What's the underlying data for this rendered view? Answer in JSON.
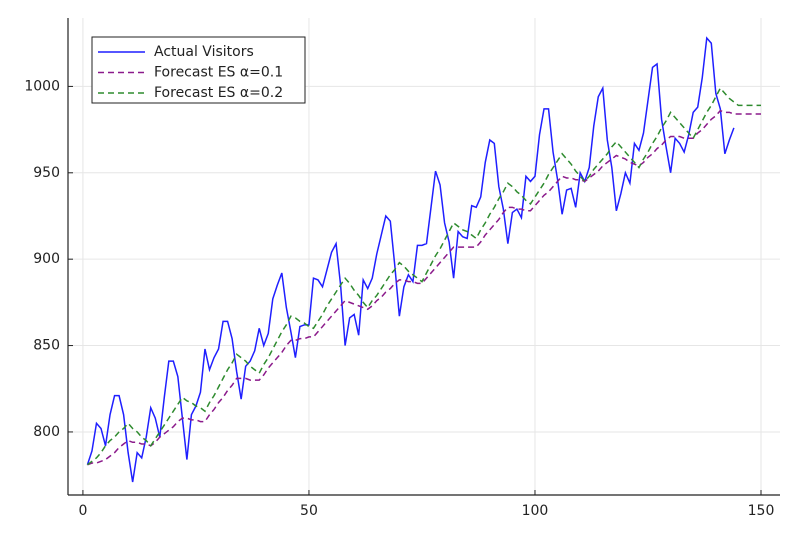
{
  "chart_data": {
    "type": "line",
    "xlim": [
      -3.3,
      154.2
    ],
    "ylim": [
      763.5,
      1039.6
    ],
    "xticks": [
      0,
      50,
      100,
      150
    ],
    "yticks": [
      800,
      850,
      900,
      950,
      1000
    ],
    "grid": true,
    "legend": "top-left",
    "series": [
      {
        "name": "Actual Visitors",
        "color": "#1f1fff",
        "dash": "solid",
        "x": [
          1,
          2,
          3,
          4,
          5,
          6,
          7,
          8,
          9,
          10,
          11,
          12,
          13,
          14,
          15,
          16,
          17,
          18,
          19,
          20,
          21,
          22,
          23,
          24,
          25,
          26,
          27,
          28,
          29,
          30,
          31,
          32,
          33,
          34,
          35,
          36,
          37,
          38,
          39,
          40,
          41,
          42,
          43,
          44,
          45,
          46,
          47,
          48,
          49,
          50,
          51,
          52,
          53,
          54,
          55,
          56,
          57,
          58,
          59,
          60,
          61,
          62,
          63,
          64,
          65,
          66,
          67,
          68,
          69,
          70,
          71,
          72,
          73,
          74,
          75,
          76,
          77,
          78,
          79,
          80,
          81,
          82,
          83,
          84,
          85,
          86,
          87,
          88,
          89,
          90,
          91,
          92,
          93,
          94,
          95,
          96,
          97,
          98,
          99,
          100,
          101,
          102,
          103,
          104,
          105,
          106,
          107,
          108,
          109,
          110,
          111,
          112,
          113,
          114,
          115,
          116,
          117,
          118,
          119,
          120,
          121,
          122,
          123,
          124,
          125,
          126,
          127,
          128,
          129,
          130,
          131,
          132,
          133,
          134,
          135,
          136,
          137,
          138,
          139,
          140,
          141,
          142,
          143,
          144
        ],
        "values": [
          781,
          789,
          805,
          802,
          792,
          810,
          821,
          821,
          810,
          788,
          771,
          788,
          785,
          797,
          814,
          808,
          797,
          820,
          841,
          841,
          832,
          808,
          784,
          810,
          815,
          823,
          848,
          836,
          843,
          848,
          864,
          864,
          854,
          835,
          819,
          838,
          841,
          847,
          860,
          850,
          857,
          877,
          885,
          892,
          872,
          858,
          843,
          861,
          862,
          862,
          889,
          888,
          884,
          894,
          904,
          909,
          885,
          850,
          866,
          868,
          856,
          888,
          883,
          889,
          903,
          914,
          925,
          922,
          896,
          867,
          884,
          891,
          887,
          908,
          908,
          909,
          930,
          951,
          943,
          921,
          910,
          889,
          916,
          913,
          912,
          931,
          930,
          936,
          956,
          969,
          967,
          942,
          929,
          909,
          927,
          929,
          924,
          948,
          945,
          948,
          972,
          987,
          987,
          962,
          946,
          926,
          940,
          941,
          930,
          950,
          945,
          953,
          977,
          994,
          999,
          969,
          953,
          928,
          938,
          950,
          944,
          967,
          963,
          973,
          992,
          1011,
          1013,
          981,
          965,
          950,
          970,
          967,
          962,
          972,
          985,
          988,
          1005,
          1028,
          1025,
          996,
          987,
          961,
          969,
          976
        ]
      },
      {
        "name": "Forecast ES α=0.1",
        "color": "#8b1a8b",
        "dash": "dashed",
        "x": [
          1,
          2,
          3,
          4,
          5,
          6,
          7,
          8,
          9,
          10,
          11,
          12,
          13,
          14,
          15,
          16,
          17,
          18,
          19,
          20,
          21,
          22,
          23,
          24,
          25,
          26,
          27,
          28,
          29,
          30,
          31,
          32,
          33,
          34,
          35,
          36,
          37,
          38,
          39,
          40,
          41,
          42,
          43,
          44,
          45,
          46,
          47,
          48,
          49,
          50,
          51,
          52,
          53,
          54,
          55,
          56,
          57,
          58,
          59,
          60,
          61,
          62,
          63,
          64,
          65,
          66,
          67,
          68,
          69,
          70,
          71,
          72,
          73,
          74,
          75,
          76,
          77,
          78,
          79,
          80,
          81,
          82,
          83,
          84,
          85,
          86,
          87,
          88,
          89,
          90,
          91,
          92,
          93,
          94,
          95,
          96,
          97,
          98,
          99,
          100,
          101,
          102,
          103,
          104,
          105,
          106,
          107,
          108,
          109,
          110,
          111,
          112,
          113,
          114,
          115,
          116,
          117,
          118,
          119,
          120,
          121,
          122,
          123,
          124,
          125,
          126,
          127,
          128,
          129,
          130,
          131,
          132,
          133,
          134,
          135,
          136,
          137,
          138,
          139,
          140,
          141,
          142,
          143,
          144,
          145,
          146,
          147,
          148,
          149,
          150
        ],
        "values": [
          781,
          782,
          782,
          783,
          784,
          786,
          788,
          791,
          793,
          795,
          794,
          794,
          793,
          793,
          792,
          794,
          797,
          799,
          801,
          803,
          806,
          808,
          808,
          807,
          807,
          806,
          806,
          810,
          813,
          817,
          820,
          824,
          827,
          831,
          831,
          831,
          830,
          830,
          830,
          833,
          837,
          840,
          843,
          846,
          850,
          853,
          853,
          854,
          854,
          855,
          855,
          858,
          861,
          864,
          867,
          870,
          873,
          876,
          875,
          874,
          873,
          872,
          871,
          873,
          876,
          878,
          881,
          883,
          886,
          888,
          888,
          887,
          887,
          886,
          886,
          889,
          892,
          895,
          898,
          901,
          904,
          907,
          907,
          907,
          907,
          907,
          907,
          910,
          914,
          917,
          920,
          923,
          927,
          930,
          930,
          929,
          929,
          928,
          928,
          931,
          934,
          937,
          939,
          942,
          945,
          948,
          947,
          947,
          946,
          946,
          945,
          947,
          949,
          951,
          954,
          956,
          958,
          960,
          959,
          958,
          956,
          955,
          954,
          956,
          959,
          961,
          964,
          966,
          969,
          971,
          971,
          971,
          970,
          970,
          970,
          973,
          975,
          978,
          981,
          983,
          986,
          985,
          985,
          984,
          984,
          984,
          984,
          984,
          984,
          984
        ]
      },
      {
        "name": "Forecast ES α=0.2",
        "color": "#2e8b2e",
        "dash": "dashed",
        "x": [
          1,
          2,
          3,
          4,
          5,
          6,
          7,
          8,
          9,
          10,
          11,
          12,
          13,
          14,
          15,
          16,
          17,
          18,
          19,
          20,
          21,
          22,
          23,
          24,
          25,
          26,
          27,
          28,
          29,
          30,
          31,
          32,
          33,
          34,
          35,
          36,
          37,
          38,
          39,
          40,
          41,
          42,
          43,
          44,
          45,
          46,
          47,
          48,
          49,
          50,
          51,
          52,
          53,
          54,
          55,
          56,
          57,
          58,
          59,
          60,
          61,
          62,
          63,
          64,
          65,
          66,
          67,
          68,
          69,
          70,
          71,
          72,
          73,
          74,
          75,
          76,
          77,
          78,
          79,
          80,
          81,
          82,
          83,
          84,
          85,
          86,
          87,
          88,
          89,
          90,
          91,
          92,
          93,
          94,
          95,
          96,
          97,
          98,
          99,
          100,
          101,
          102,
          103,
          104,
          105,
          106,
          107,
          108,
          109,
          110,
          111,
          112,
          113,
          114,
          115,
          116,
          117,
          118,
          119,
          120,
          121,
          122,
          123,
          124,
          125,
          126,
          127,
          128,
          129,
          130,
          131,
          132,
          133,
          134,
          135,
          136,
          137,
          138,
          139,
          140,
          141,
          142,
          143,
          144,
          145,
          146,
          147,
          148,
          149,
          150
        ],
        "values": [
          781,
          783,
          785,
          788,
          792,
          795,
          797,
          800,
          802,
          805,
          802,
          800,
          797,
          795,
          792,
          796,
          800,
          804,
          808,
          812,
          816,
          820,
          818,
          817,
          815,
          814,
          812,
          817,
          821,
          826,
          831,
          836,
          840,
          845,
          843,
          841,
          838,
          836,
          834,
          839,
          843,
          848,
          853,
          858,
          862,
          867,
          866,
          864,
          863,
          861,
          860,
          864,
          868,
          873,
          877,
          881,
          885,
          889,
          886,
          882,
          879,
          875,
          872,
          876,
          879,
          883,
          887,
          891,
          894,
          898,
          896,
          893,
          891,
          889,
          887,
          892,
          897,
          902,
          906,
          911,
          916,
          921,
          919,
          917,
          916,
          914,
          912,
          917,
          921,
          926,
          930,
          935,
          939,
          944,
          942,
          939,
          937,
          934,
          932,
          936,
          940,
          944,
          949,
          953,
          957,
          961,
          958,
          955,
          951,
          948,
          945,
          948,
          952,
          955,
          958,
          961,
          965,
          968,
          965,
          962,
          959,
          956,
          953,
          958,
          962,
          967,
          971,
          976,
          980,
          985,
          982,
          979,
          976,
          973,
          970,
          975,
          980,
          985,
          989,
          994,
          999,
          996,
          993,
          991,
          989,
          989,
          989,
          989,
          989,
          989
        ]
      }
    ]
  }
}
